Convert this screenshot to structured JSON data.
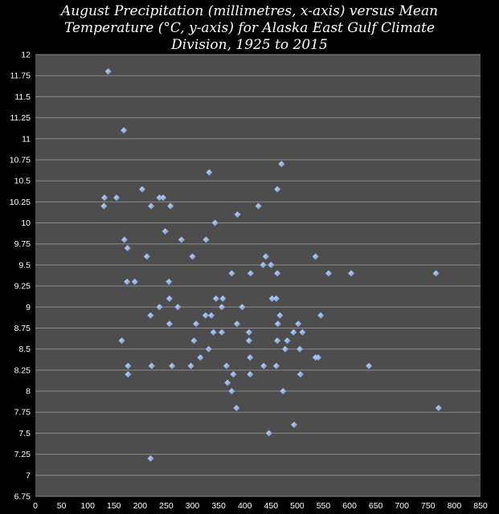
{
  "chart_data": {
    "type": "scatter",
    "title_lines": [
      "August Precipitation (millimetres, x-axis) versus Mean",
      "Temperature (°C, y-axis) for Alaska East Gulf Climate",
      "Division, 1925 to 2015"
    ],
    "xlim": [
      0,
      850
    ],
    "ylim": [
      6.75,
      12
    ],
    "x_ticks": [
      "0",
      "50",
      "100",
      "150",
      "200",
      "250",
      "300",
      "350",
      "400",
      "450",
      "500",
      "550",
      "600",
      "650",
      "700",
      "750",
      "800",
      "850"
    ],
    "y_ticks": [
      "12",
      "11.75",
      "11.5",
      "11.25",
      "11",
      "10.75",
      "10.5",
      "10.25",
      "10",
      "9.75",
      "9.5",
      "9.25",
      "9",
      "8.75",
      "8.5",
      "8.25",
      "8",
      "7.75",
      "7.5",
      "7.25",
      "7",
      "6.75"
    ],
    "grid": true,
    "legend": "none",
    "marker_color": "#8fb6ea",
    "plot_background": "#4d4d4d",
    "points": [
      [
        139,
        11.8
      ],
      [
        169,
        11.1
      ],
      [
        332,
        10.6
      ],
      [
        470,
        10.7
      ],
      [
        132,
        10.3
      ],
      [
        131,
        10.2
      ],
      [
        155,
        10.3
      ],
      [
        204,
        10.4
      ],
      [
        237,
        10.3
      ],
      [
        244,
        10.3
      ],
      [
        221,
        10.2
      ],
      [
        258,
        10.2
      ],
      [
        462,
        10.4
      ],
      [
        426,
        10.2
      ],
      [
        386,
        10.1
      ],
      [
        343,
        10.0
      ],
      [
        248,
        9.9
      ],
      [
        170,
        9.8
      ],
      [
        176,
        9.7
      ],
      [
        279,
        9.8
      ],
      [
        326,
        9.8
      ],
      [
        213,
        9.6
      ],
      [
        300,
        9.6
      ],
      [
        440,
        9.6
      ],
      [
        535,
        9.6
      ],
      [
        435,
        9.5
      ],
      [
        450,
        9.5
      ],
      [
        375,
        9.4
      ],
      [
        411,
        9.4
      ],
      [
        462,
        9.4
      ],
      [
        560,
        9.4
      ],
      [
        603,
        9.4
      ],
      [
        765,
        9.4
      ],
      [
        175,
        9.3
      ],
      [
        190,
        9.3
      ],
      [
        255,
        9.3
      ],
      [
        256,
        9.1
      ],
      [
        345,
        9.1
      ],
      [
        358,
        9.1
      ],
      [
        452,
        9.1
      ],
      [
        460,
        9.1
      ],
      [
        237,
        9.0
      ],
      [
        272,
        9.0
      ],
      [
        356,
        9.0
      ],
      [
        395,
        9.0
      ],
      [
        220,
        8.9
      ],
      [
        325,
        8.9
      ],
      [
        336,
        8.9
      ],
      [
        467,
        8.9
      ],
      [
        545,
        8.9
      ],
      [
        256,
        8.8
      ],
      [
        307,
        8.8
      ],
      [
        385,
        8.8
      ],
      [
        463,
        8.8
      ],
      [
        502,
        8.8
      ],
      [
        340,
        8.7
      ],
      [
        356,
        8.7
      ],
      [
        408,
        8.7
      ],
      [
        493,
        8.7
      ],
      [
        510,
        8.7
      ],
      [
        165,
        8.6
      ],
      [
        303,
        8.6
      ],
      [
        408,
        8.6
      ],
      [
        462,
        8.6
      ],
      [
        481,
        8.6
      ],
      [
        331,
        8.5
      ],
      [
        477,
        8.5
      ],
      [
        505,
        8.5
      ],
      [
        315,
        8.4
      ],
      [
        410,
        8.4
      ],
      [
        535,
        8.4
      ],
      [
        540,
        8.4
      ],
      [
        177,
        8.3
      ],
      [
        222,
        8.3
      ],
      [
        261,
        8.3
      ],
      [
        297,
        8.3
      ],
      [
        365,
        8.3
      ],
      [
        436,
        8.3
      ],
      [
        460,
        8.3
      ],
      [
        637,
        8.3
      ],
      [
        177,
        8.2
      ],
      [
        378,
        8.2
      ],
      [
        410,
        8.2
      ],
      [
        506,
        8.2
      ],
      [
        367,
        8.1
      ],
      [
        375,
        8.0
      ],
      [
        473,
        8.0
      ],
      [
        384,
        7.8
      ],
      [
        770,
        7.8
      ],
      [
        494,
        7.6
      ],
      [
        446,
        7.5
      ],
      [
        220,
        7.2
      ]
    ]
  }
}
